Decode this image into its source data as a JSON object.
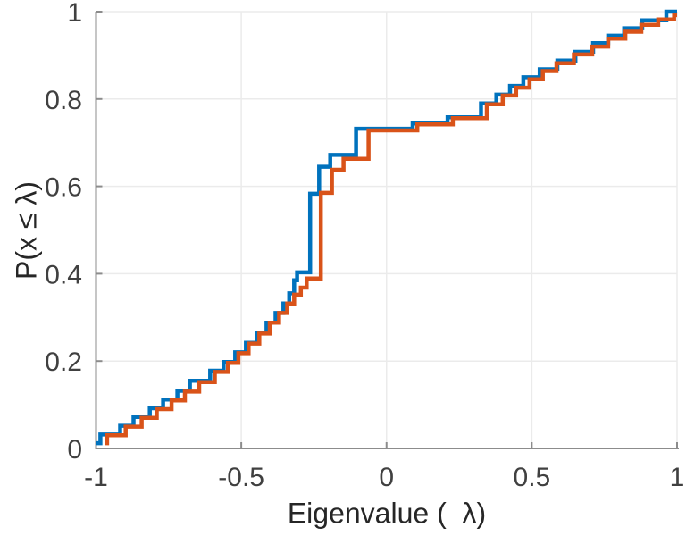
{
  "figure": {
    "background": "#ffffff",
    "title": "",
    "xlabel": "Eigenvalue (  λ)",
    "ylabel": "P(x ≤ λ)"
  },
  "chart_data": {
    "type": "line",
    "subtype": "stairs-ecdf",
    "title": "",
    "xlabel": "Eigenvalue (  λ)",
    "ylabel": "P(x ≤ λ)",
    "xlim": [
      -1,
      1
    ],
    "ylim": [
      0,
      1
    ],
    "x_ticks": [
      -1,
      -0.5,
      0,
      0.5,
      1
    ],
    "x_tick_labels": [
      "-1",
      "-0.5",
      "0",
      "0.5",
      "1"
    ],
    "y_ticks": [
      0,
      0.2,
      0.4,
      0.6,
      0.8,
      1
    ],
    "y_tick_labels": [
      "0",
      "0.2",
      "0.4",
      "0.6",
      "0.8",
      "1"
    ],
    "grid": true,
    "legend": null,
    "grid_color": "#ebebeb",
    "axis_color": "#8c8c8c",
    "tick_label_color": "#404040",
    "series": [
      {
        "name": "ecdf-blue",
        "color": "#0072BD",
        "line_width": 4.5,
        "start": [
          -1.0,
          0.012
        ],
        "end_x": 1.0,
        "steps": [
          [
            -0.985,
            0.032
          ],
          [
            -0.917,
            0.052
          ],
          [
            -0.871,
            0.072
          ],
          [
            -0.815,
            0.092
          ],
          [
            -0.769,
            0.112
          ],
          [
            -0.72,
            0.132
          ],
          [
            -0.677,
            0.155
          ],
          [
            -0.607,
            0.178
          ],
          [
            -0.561,
            0.198
          ],
          [
            -0.521,
            0.22
          ],
          [
            -0.484,
            0.242
          ],
          [
            -0.447,
            0.265
          ],
          [
            -0.413,
            0.288
          ],
          [
            -0.382,
            0.31
          ],
          [
            -0.355,
            0.332
          ],
          [
            -0.335,
            0.355
          ],
          [
            -0.318,
            0.385
          ],
          [
            -0.308,
            0.403
          ],
          [
            -0.263,
            0.583
          ],
          [
            -0.232,
            0.645
          ],
          [
            -0.194,
            0.672
          ],
          [
            -0.105,
            0.732
          ],
          [
            0.09,
            0.744
          ],
          [
            0.21,
            0.758
          ],
          [
            0.325,
            0.79
          ],
          [
            0.378,
            0.81
          ],
          [
            0.425,
            0.83
          ],
          [
            0.471,
            0.85
          ],
          [
            0.527,
            0.868
          ],
          [
            0.588,
            0.888
          ],
          [
            0.65,
            0.908
          ],
          [
            0.711,
            0.928
          ],
          [
            0.763,
            0.945
          ],
          [
            0.818,
            0.962
          ],
          [
            0.88,
            0.98
          ],
          [
            0.963,
            1.0
          ]
        ]
      },
      {
        "name": "ecdf-orange",
        "color": "#D95319",
        "line_width": 4.5,
        "start": [
          -0.97,
          0.012
        ],
        "end_x": 1.0,
        "steps": [
          [
            -0.962,
            0.03
          ],
          [
            -0.898,
            0.05
          ],
          [
            -0.843,
            0.07
          ],
          [
            -0.791,
            0.09
          ],
          [
            -0.74,
            0.11
          ],
          [
            -0.694,
            0.13
          ],
          [
            -0.645,
            0.152
          ],
          [
            -0.591,
            0.175
          ],
          [
            -0.546,
            0.196
          ],
          [
            -0.51,
            0.218
          ],
          [
            -0.475,
            0.24
          ],
          [
            -0.438,
            0.263
          ],
          [
            -0.402,
            0.288
          ],
          [
            -0.37,
            0.31
          ],
          [
            -0.342,
            0.332
          ],
          [
            -0.318,
            0.352
          ],
          [
            -0.295,
            0.368
          ],
          [
            -0.275,
            0.389
          ],
          [
            -0.226,
            0.585
          ],
          [
            -0.188,
            0.638
          ],
          [
            -0.148,
            0.663
          ],
          [
            -0.062,
            0.728
          ],
          [
            0.106,
            0.742
          ],
          [
            0.228,
            0.756
          ],
          [
            0.345,
            0.788
          ],
          [
            0.4,
            0.808
          ],
          [
            0.446,
            0.826
          ],
          [
            0.492,
            0.845
          ],
          [
            0.538,
            0.864
          ],
          [
            0.585,
            0.882
          ],
          [
            0.645,
            0.902
          ],
          [
            0.708,
            0.92
          ],
          [
            0.763,
            0.938
          ],
          [
            0.822,
            0.954
          ],
          [
            0.877,
            0.97
          ],
          [
            0.935,
            0.982
          ],
          [
            0.99,
            0.992
          ]
        ]
      }
    ]
  }
}
